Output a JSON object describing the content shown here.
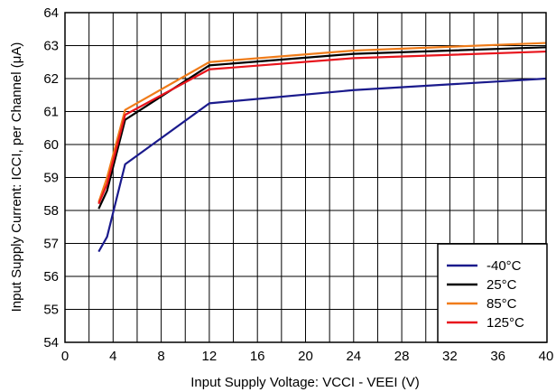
{
  "chart_data": {
    "type": "line",
    "title": "",
    "xlabel": "Input Supply Voltage: VCCI - VEEI (V)",
    "ylabel": "Input Supply Current: ICCI, per Channel (μA)",
    "xlim": [
      0,
      40
    ],
    "ylim": [
      54,
      64
    ],
    "x_ticks": [
      "0",
      "4",
      "8",
      "12",
      "16",
      "20",
      "24",
      "28",
      "32",
      "36",
      "40"
    ],
    "y_ticks": [
      "54",
      "55",
      "56",
      "57",
      "58",
      "59",
      "60",
      "61",
      "62",
      "63",
      "64"
    ],
    "grid": true,
    "minor_x_grid_step": 2,
    "legend_position": "bottom-right",
    "series": [
      {
        "name": "-40°C",
        "color": "#1a1a8c",
        "x": [
          2.8,
          3.5,
          5,
          12,
          24,
          40
        ],
        "y": [
          56.75,
          57.2,
          59.4,
          61.25,
          61.65,
          62.0
        ]
      },
      {
        "name": "25°C",
        "color": "#000000",
        "x": [
          2.8,
          3.5,
          5,
          12,
          24,
          40
        ],
        "y": [
          58.05,
          58.6,
          60.75,
          62.4,
          62.75,
          62.95
        ]
      },
      {
        "name": "85°C",
        "color": "#f07c1a",
        "x": [
          2.8,
          3.5,
          5,
          12,
          24,
          40
        ],
        "y": [
          58.25,
          59.0,
          61.05,
          62.5,
          62.85,
          63.08
        ]
      },
      {
        "name": "125°C",
        "color": "#e8141c",
        "x": [
          2.8,
          3.5,
          5,
          12,
          24,
          40
        ],
        "y": [
          58.2,
          58.8,
          60.9,
          62.28,
          62.62,
          62.82
        ]
      }
    ]
  }
}
